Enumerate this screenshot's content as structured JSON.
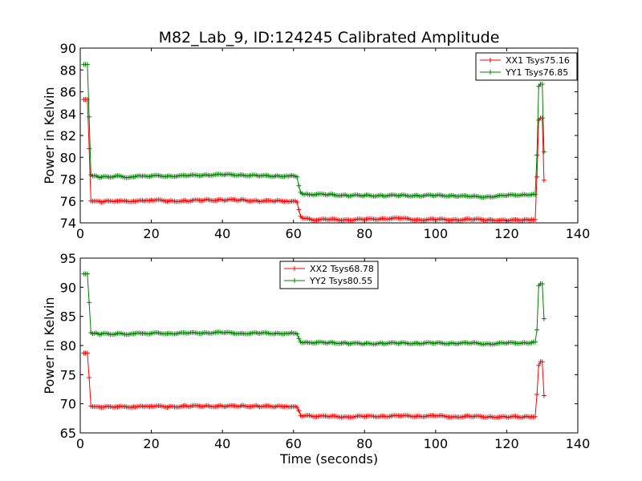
{
  "figure": {
    "title": "M82_Lab_9, ID:124245 Calibrated Amplitude"
  },
  "chart_data": [
    {
      "type": "line",
      "title": "M82_Lab_9, ID:124245 Calibrated Amplitude",
      "xlabel": "",
      "ylabel": "Power in Kelvin",
      "xlim": [
        0,
        140
      ],
      "ylim": [
        74,
        90
      ],
      "xticks": [
        "0",
        "20",
        "40",
        "60",
        "80",
        "100",
        "120",
        "140"
      ],
      "yticks": [
        "74",
        "76",
        "78",
        "80",
        "82",
        "84",
        "86",
        "88",
        "90"
      ],
      "legend_position": "top-right",
      "grid": false,
      "series": [
        {
          "name": "XX1 Tsys75.16",
          "color": "#ff0000",
          "x": [
            1,
            1.5,
            2,
            2.5,
            3,
            4,
            5,
            6,
            8,
            10,
            12,
            15,
            18,
            20,
            25,
            30,
            35,
            40,
            45,
            50,
            55,
            58,
            60,
            61,
            61.5,
            62,
            63,
            65,
            70,
            75,
            80,
            85,
            90,
            95,
            100,
            105,
            110,
            115,
            120,
            125,
            127,
            128,
            128.5,
            129,
            129.5,
            130,
            130.5
          ],
          "y": [
            85.3,
            85.3,
            85.3,
            80.8,
            76.0,
            76.0,
            76.0,
            75.9,
            76.0,
            76.0,
            76.0,
            76.0,
            76.0,
            76.1,
            76.0,
            76.0,
            76.1,
            76.1,
            76.1,
            76.0,
            76.0,
            76.0,
            76.0,
            75.9,
            75.2,
            74.6,
            74.4,
            74.3,
            74.3,
            74.3,
            74.3,
            74.4,
            74.4,
            74.3,
            74.3,
            74.3,
            74.3,
            74.3,
            74.2,
            74.3,
            74.3,
            74.3,
            78.2,
            83.4,
            83.6,
            83.6,
            77.9
          ]
        },
        {
          "name": "YY1 Tsys76.85",
          "color": "#008000",
          "x": [
            1,
            1.5,
            2,
            2.5,
            3,
            4,
            5,
            6,
            8,
            10,
            12,
            15,
            18,
            20,
            25,
            30,
            35,
            40,
            45,
            50,
            55,
            58,
            60,
            61,
            61.5,
            62,
            63,
            65,
            70,
            75,
            80,
            85,
            90,
            95,
            100,
            105,
            110,
            115,
            120,
            125,
            127,
            128,
            128.5,
            129,
            129.5,
            130,
            130.5
          ],
          "y": [
            88.5,
            88.5,
            88.5,
            83.7,
            78.4,
            78.3,
            78.2,
            78.2,
            78.2,
            78.3,
            78.2,
            78.2,
            78.3,
            78.3,
            78.3,
            78.3,
            78.4,
            78.4,
            78.4,
            78.3,
            78.3,
            78.3,
            78.3,
            78.2,
            77.4,
            76.8,
            76.6,
            76.6,
            76.6,
            76.5,
            76.5,
            76.5,
            76.5,
            76.5,
            76.5,
            76.5,
            76.4,
            76.4,
            76.5,
            76.6,
            76.6,
            76.6,
            80.2,
            86.5,
            86.7,
            86.7,
            80.5
          ]
        }
      ]
    },
    {
      "type": "line",
      "title": "",
      "xlabel": "Time (seconds)",
      "ylabel": "Power in Kelvin",
      "xlim": [
        0,
        140
      ],
      "ylim": [
        65,
        95
      ],
      "xticks": [
        "0",
        "20",
        "40",
        "60",
        "80",
        "100",
        "120",
        "140"
      ],
      "yticks": [
        "65",
        "70",
        "75",
        "80",
        "85",
        "90",
        "95"
      ],
      "legend_position": "upper-center",
      "grid": false,
      "series": [
        {
          "name": "XX2 Tsys68.78",
          "color": "#ff0000",
          "x": [
            1,
            1.5,
            2,
            2.5,
            3,
            4,
            5,
            6,
            8,
            10,
            12,
            15,
            18,
            20,
            25,
            30,
            35,
            40,
            45,
            50,
            55,
            58,
            60,
            61,
            61.5,
            62,
            63,
            65,
            70,
            75,
            80,
            85,
            90,
            95,
            100,
            105,
            110,
            115,
            120,
            125,
            127,
            128,
            128.5,
            129,
            129.5,
            130,
            130.5
          ],
          "y": [
            78.7,
            78.7,
            78.7,
            74.5,
            69.6,
            69.5,
            69.5,
            69.4,
            69.5,
            69.5,
            69.5,
            69.5,
            69.5,
            69.6,
            69.5,
            69.6,
            69.6,
            69.6,
            69.6,
            69.6,
            69.5,
            69.6,
            69.5,
            69.4,
            68.8,
            68.0,
            67.9,
            67.9,
            67.8,
            67.8,
            67.8,
            67.9,
            67.9,
            67.9,
            67.9,
            67.8,
            67.8,
            67.8,
            67.7,
            67.8,
            67.8,
            67.8,
            71.6,
            76.6,
            77.2,
            77.2,
            71.4
          ]
        },
        {
          "name": "YY2 Tsys80.55",
          "color": "#008000",
          "x": [
            1,
            1.5,
            2,
            2.5,
            3,
            4,
            5,
            6,
            8,
            10,
            12,
            15,
            18,
            20,
            25,
            30,
            35,
            40,
            45,
            50,
            55,
            58,
            60,
            61,
            61.5,
            62,
            63,
            65,
            70,
            75,
            80,
            85,
            90,
            95,
            100,
            105,
            110,
            115,
            120,
            125,
            127,
            128,
            128.5,
            129,
            129.5,
            130,
            130.5
          ],
          "y": [
            92.3,
            92.3,
            92.3,
            87.4,
            82.2,
            82.1,
            82.0,
            82.0,
            82.0,
            82.0,
            82.0,
            82.0,
            82.1,
            82.1,
            82.1,
            82.1,
            82.2,
            82.2,
            82.1,
            82.1,
            82.1,
            82.1,
            82.1,
            82.0,
            81.2,
            80.6,
            80.5,
            80.5,
            80.5,
            80.4,
            80.3,
            80.4,
            80.4,
            80.4,
            80.4,
            80.4,
            80.4,
            80.3,
            80.4,
            80.5,
            80.5,
            80.6,
            82.7,
            90.3,
            90.6,
            90.6,
            84.6
          ]
        }
      ]
    }
  ]
}
